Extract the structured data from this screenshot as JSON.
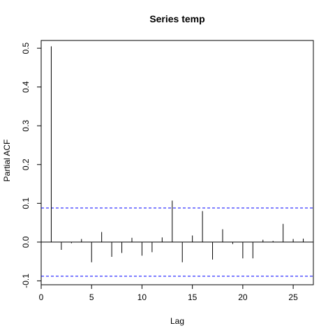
{
  "chart_data": {
    "type": "bar",
    "title": "Series  temp",
    "xlabel": "Lag",
    "ylabel": "Partial ACF",
    "xlim": [
      0,
      27
    ],
    "ylim": [
      -0.11,
      0.52
    ],
    "x_ticks": [
      0,
      5,
      10,
      15,
      20,
      25
    ],
    "y_ticks": [
      -0.1,
      0.0,
      0.1,
      0.2,
      0.3,
      0.4,
      0.5
    ],
    "y_tick_labels": [
      "-0.1",
      "0.0",
      "0.1",
      "0.2",
      "0.3",
      "0.4",
      "0.5"
    ],
    "confidence_bound": 0.088,
    "confidence_color": "#0000ff",
    "grid": false,
    "lags": [
      1,
      2,
      3,
      4,
      5,
      6,
      7,
      8,
      9,
      10,
      11,
      12,
      13,
      14,
      15,
      16,
      17,
      18,
      19,
      20,
      21,
      22,
      23,
      24,
      25,
      26
    ],
    "values": [
      0.505,
      -0.02,
      -0.003,
      0.008,
      -0.052,
      0.026,
      -0.038,
      -0.028,
      0.011,
      -0.035,
      -0.026,
      0.012,
      0.107,
      -0.052,
      0.017,
      0.08,
      -0.045,
      0.033,
      -0.005,
      -0.042,
      -0.042,
      0.006,
      0.003,
      0.047,
      0.008,
      0.009
    ]
  }
}
